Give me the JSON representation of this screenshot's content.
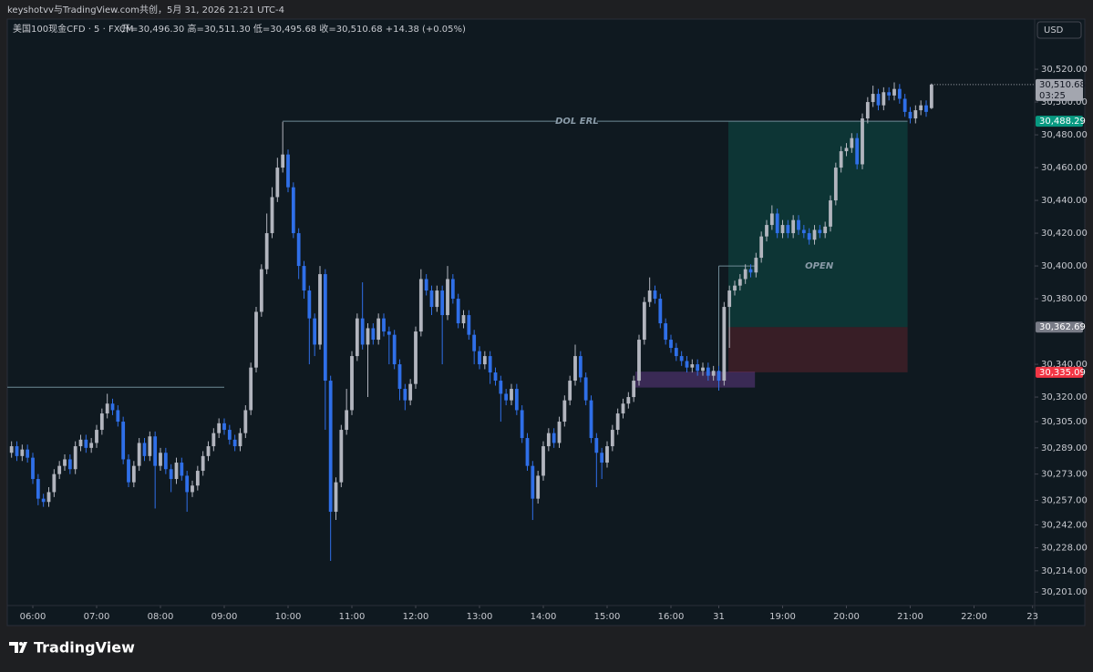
{
  "header": {
    "attribution": "keyshotvv与TradingView.com共创，5月 31, 2026 21:21 UTC-4",
    "symbol": "美国100现金CFD · 5 · FXCM",
    "ohlc": "开=30,496.30 高=30,511.30 低=30,495.68 收=30,510.68 +14.38 (+0.05%)",
    "currency": "USD",
    "logo": "TradingView"
  },
  "chart_data": {
    "type": "candlestick",
    "up_color": "#b2b5be",
    "down_color": "#2f6fe8",
    "grid": false,
    "open": [
      30286,
      30290,
      30284,
      30288,
      30283,
      30270,
      30258,
      30256,
      30262,
      30273,
      30278,
      30282,
      30276,
      30290,
      30294,
      30289,
      30292,
      30300,
      30310,
      30316,
      30312,
      30305,
      30282,
      30268,
      30278,
      30292,
      30284,
      30296,
      30278,
      30286,
      30276,
      30270,
      30280,
      30272,
      30262,
      30266,
      30275,
      30284,
      30290,
      30298,
      30304,
      30300,
      30294,
      30290,
      30298,
      30312,
      30338,
      30372,
      30398,
      30420,
      30442,
      30460,
      30468,
      30448,
      30420,
      30400,
      30385,
      30368,
      30352,
      30395,
      30330,
      30250,
      30268,
      30300,
      30312,
      30345,
      30368,
      30352,
      30362,
      30355,
      30368,
      30360,
      30358,
      30340,
      30325,
      30318,
      30328,
      30360,
      30392,
      30385,
      30375,
      30385,
      30370,
      30392,
      30380,
      30365,
      30370,
      30358,
      30348,
      30340,
      30345,
      30335,
      30330,
      30322,
      30318,
      30325,
      30312,
      30295,
      30278,
      30258,
      30272,
      30290,
      30298,
      30292,
      30305,
      30318,
      30330,
      30345,
      30332,
      30318,
      30295,
      30286,
      30280,
      30290,
      30300,
      30310,
      30316,
      30320,
      30330,
      30355,
      30378,
      30385,
      30380,
      30365,
      30355,
      30350,
      30345,
      30342,
      30338,
      30340,
      30336,
      30338,
      30333,
      30336,
      30330,
      30375,
      30385,
      30388,
      30392,
      30398,
      30396,
      30405,
      30418,
      30425,
      30432,
      30420,
      30425,
      30420,
      30428,
      30422,
      30420,
      30416,
      30422,
      30420,
      30424,
      30440,
      30460,
      30470,
      30472,
      30478,
      30462,
      30490,
      30500,
      30505,
      30498,
      30506,
      30504,
      30508,
      30502,
      30494,
      30490,
      30495,
      30498,
      30496.3
    ],
    "high": [
      30293,
      30293,
      30291,
      30291,
      30286,
      30273,
      30261,
      30265,
      30276,
      30281,
      30285,
      30285,
      30293,
      30297,
      30297,
      30295,
      30303,
      30313,
      30322,
      30319,
      30315,
      30308,
      30285,
      30281,
      30295,
      30295,
      30299,
      30299,
      30289,
      30289,
      30279,
      30283,
      30283,
      30275,
      30269,
      30278,
      30287,
      30293,
      30301,
      30307,
      30307,
      30303,
      30297,
      30301,
      30315,
      30341,
      30375,
      30401,
      30432,
      30448,
      30466,
      30488,
      30471,
      30451,
      30423,
      30403,
      30388,
      30371,
      30400,
      30398,
      30333,
      30271,
      30303,
      30325,
      30348,
      30371,
      30390,
      30365,
      30365,
      30371,
      30371,
      30363,
      30361,
      30343,
      30328,
      30331,
      30363,
      30398,
      30395,
      30388,
      30388,
      30388,
      30400,
      30395,
      30383,
      30373,
      30373,
      30361,
      30351,
      30348,
      30348,
      30338,
      30333,
      30325,
      30328,
      30328,
      30315,
      30298,
      30281,
      30275,
      30293,
      30301,
      30301,
      30308,
      30321,
      30333,
      30352,
      30348,
      30335,
      30321,
      30298,
      30289,
      30293,
      30303,
      30313,
      30319,
      30323,
      30333,
      30358,
      30381,
      30393,
      30388,
      30383,
      30368,
      30358,
      30353,
      30348,
      30345,
      30343,
      30343,
      30341,
      30341,
      30339,
      30339,
      30378,
      30388,
      30391,
      30395,
      30401,
      30401,
      30408,
      30421,
      30428,
      30437,
      30435,
      30428,
      30428,
      30431,
      30431,
      30425,
      30423,
      30425,
      30425,
      30427,
      30443,
      30463,
      30473,
      30475,
      30481,
      30481,
      30493,
      30503,
      30510,
      30508,
      30509,
      30509,
      30512,
      30511,
      30505,
      30497,
      30498,
      30501,
      30501,
      30511.3
    ],
    "low": [
      30283,
      30281,
      30281,
      30280,
      30267,
      30254,
      30253,
      30253,
      30259,
      30270,
      30275,
      30273,
      30273,
      30287,
      30286,
      30286,
      30289,
      30297,
      30307,
      30309,
      30302,
      30279,
      30265,
      30265,
      30275,
      30281,
      30281,
      30252,
      30275,
      30273,
      30262,
      30267,
      30269,
      30250,
      30259,
      30263,
      30272,
      30281,
      30287,
      30295,
      30297,
      30291,
      30287,
      30287,
      30295,
      30309,
      30335,
      30369,
      30395,
      30417,
      30439,
      30457,
      30445,
      30417,
      30392,
      30380,
      30340,
      30345,
      30349,
      30300,
      30220,
      30245,
      30265,
      30297,
      30309,
      30342,
      30349,
      30320,
      30352,
      30352,
      30357,
      30340,
      30337,
      30318,
      30312,
      30315,
      30325,
      30357,
      30382,
      30370,
      30372,
      30340,
      30367,
      30377,
      30362,
      30362,
      30355,
      30340,
      30337,
      30337,
      30328,
      30327,
      30305,
      30315,
      30315,
      30309,
      30292,
      30275,
      30245,
      30255,
      30269,
      30287,
      30289,
      30289,
      30302,
      30315,
      30327,
      30329,
      30315,
      30292,
      30265,
      30270,
      30277,
      30287,
      30297,
      30307,
      30313,
      30317,
      30327,
      30352,
      30375,
      30377,
      30362,
      30352,
      30347,
      30342,
      30339,
      30335,
      30335,
      30333,
      30333,
      30330,
      30330,
      30324,
      30327,
      30350,
      30382,
      30385,
      30389,
      30393,
      30393,
      30402,
      30415,
      30422,
      30417,
      30417,
      30417,
      30417,
      30419,
      30417,
      30413,
      30413,
      30417,
      30417,
      30421,
      30437,
      30457,
      30467,
      30469,
      30459,
      30459,
      30487,
      30497,
      30495,
      30495,
      30501,
      30501,
      30499,
      30491,
      30487,
      30487,
      30492,
      30491,
      30495.68
    ],
    "close": [
      30290,
      30284,
      30288,
      30283,
      30270,
      30258,
      30256,
      30262,
      30273,
      30278,
      30282,
      30276,
      30290,
      30294,
      30289,
      30292,
      30300,
      30310,
      30316,
      30312,
      30305,
      30282,
      30268,
      30278,
      30292,
      30284,
      30296,
      30278,
      30286,
      30276,
      30270,
      30280,
      30272,
      30262,
      30266,
      30275,
      30284,
      30290,
      30298,
      30304,
      30300,
      30294,
      30290,
      30298,
      30312,
      30338,
      30372,
      30398,
      30420,
      30442,
      30460,
      30468,
      30448,
      30420,
      30400,
      30385,
      30368,
      30352,
      30395,
      30330,
      30250,
      30268,
      30300,
      30312,
      30345,
      30368,
      30352,
      30362,
      30355,
      30368,
      30360,
      30358,
      30340,
      30325,
      30318,
      30328,
      30360,
      30392,
      30385,
      30375,
      30385,
      30370,
      30392,
      30380,
      30365,
      30370,
      30358,
      30348,
      30340,
      30345,
      30335,
      30330,
      30322,
      30318,
      30325,
      30312,
      30295,
      30278,
      30258,
      30272,
      30290,
      30298,
      30292,
      30305,
      30318,
      30330,
      30345,
      30332,
      30318,
      30295,
      30286,
      30280,
      30290,
      30300,
      30310,
      30316,
      30320,
      30330,
      30355,
      30378,
      30385,
      30380,
      30365,
      30355,
      30350,
      30345,
      30342,
      30338,
      30340,
      30336,
      30338,
      30333,
      30336,
      30330,
      30375,
      30385,
      30388,
      30392,
      30398,
      30396,
      30405,
      30418,
      30425,
      30432,
      30420,
      30425,
      30420,
      30428,
      30422,
      30420,
      30416,
      30422,
      30420,
      30424,
      30440,
      30460,
      30470,
      30472,
      30478,
      30462,
      30490,
      30500,
      30505,
      30498,
      30506,
      30504,
      30508,
      30502,
      30494,
      30490,
      30495,
      30498,
      30494,
      30510.68
    ],
    "xlim": [
      -0.8,
      192.4
    ],
    "xticks": [
      {
        "value": 4,
        "label": "06:00"
      },
      {
        "value": 16,
        "label": "07:00"
      },
      {
        "value": 28,
        "label": "08:00"
      },
      {
        "value": 40,
        "label": "09:00"
      },
      {
        "value": 52,
        "label": "10:00"
      },
      {
        "value": 64,
        "label": "11:00"
      },
      {
        "value": 76,
        "label": "12:00"
      },
      {
        "value": 88,
        "label": "13:00"
      },
      {
        "value": 100,
        "label": "14:00"
      },
      {
        "value": 112,
        "label": "15:00"
      },
      {
        "value": 124,
        "label": "16:00"
      },
      {
        "value": 133,
        "label": "31"
      },
      {
        "value": 145,
        "label": "19:00"
      },
      {
        "value": 157,
        "label": "20:00"
      },
      {
        "value": 169,
        "label": "21:00"
      },
      {
        "value": 181,
        "label": "22:00"
      },
      {
        "value": 192,
        "label": "23"
      }
    ],
    "ylim": [
      30192.8,
      30550.6
    ],
    "yticks": [
      {
        "value": 30520,
        "label": "30,520.00"
      },
      {
        "value": 30500,
        "label": "30,500.00"
      },
      {
        "value": 30480,
        "label": "30,480.00"
      },
      {
        "value": 30460,
        "label": "30,460.00"
      },
      {
        "value": 30440,
        "label": "30,440.00"
      },
      {
        "value": 30420,
        "label": "30,420.00"
      },
      {
        "value": 30400,
        "label": "30,400.00"
      },
      {
        "value": 30380,
        "label": "30,380.00"
      },
      {
        "value": 30340,
        "label": "30,340.00"
      },
      {
        "value": 30320,
        "label": "30,320.00"
      },
      {
        "value": 30305,
        "label": "30,305.00"
      },
      {
        "value": 30289,
        "label": "30,289.00"
      },
      {
        "value": 30273,
        "label": "30,273.00"
      },
      {
        "value": 30257,
        "label": "30,257.00"
      },
      {
        "value": 30242,
        "label": "30,242.00"
      },
      {
        "value": 30228,
        "label": "30,228.00"
      },
      {
        "value": 30214,
        "label": "30,214.00"
      },
      {
        "value": 30201,
        "label": "30,201.00"
      }
    ],
    "last_price": {
      "value": 30510.68,
      "label": "30,510.68",
      "countdown": "03:25"
    },
    "lines": [
      {
        "text": "DOL ERL",
        "y": {
          "value": 30488.29,
          "label": "30,488.29"
        },
        "x": [
          51,
          168.5
        ],
        "color": "#6f8a96"
      },
      {
        "text": "OPEN",
        "y": {
          "value": 30400
        },
        "x": [
          133,
          139.8
        ],
        "color": "#6f8a96"
      },
      {
        "y": {
          "value": 30326
        },
        "x": [
          -0.8,
          40
        ],
        "color": "#6f8a96"
      }
    ],
    "position": {
      "x": [
        134.8,
        168.5
      ],
      "entry": {
        "value": 30362.69,
        "label": "30,362.69"
      },
      "stop": {
        "value": 30335.09,
        "label": "30,335.09"
      },
      "target": {
        "value": 30488.29
      },
      "target_color": "#089981",
      "stop_color": "#f23645"
    },
    "zone": {
      "x": [
        117.3,
        139.8
      ],
      "y": [
        30325.8,
        30335.5
      ],
      "color": "#3a2a55"
    }
  }
}
